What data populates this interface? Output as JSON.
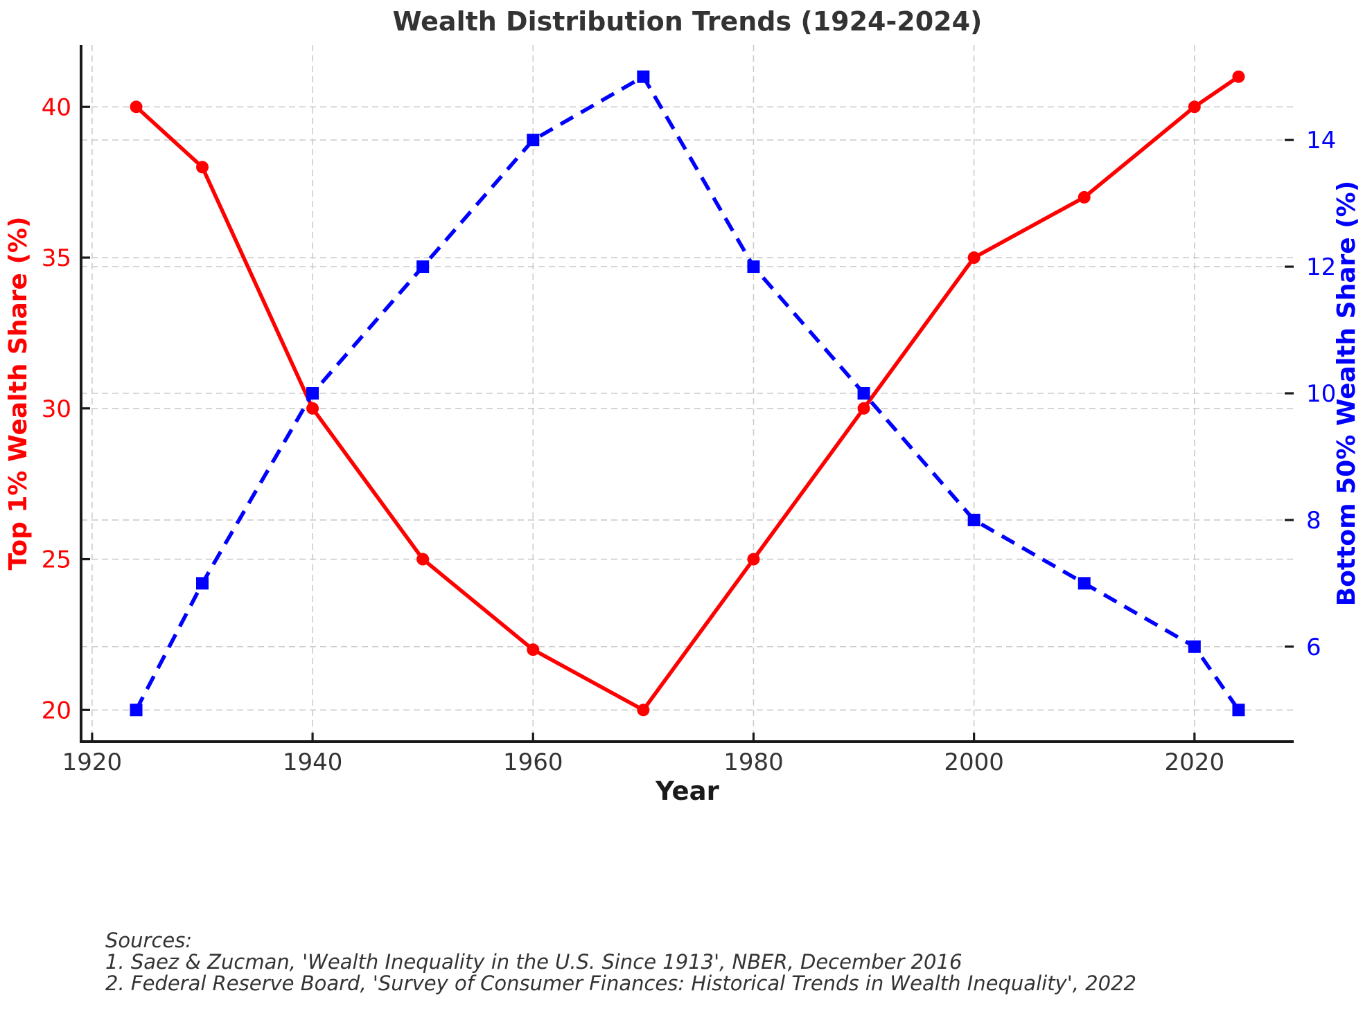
{
  "title": "Wealth Distribution Trends (1924-2024)",
  "chart_data": {
    "type": "line",
    "title": "Wealth Distribution Trends (1924-2024)",
    "xlabel": "Year",
    "grid": true,
    "x": [
      1924,
      1930,
      1940,
      1950,
      1960,
      1970,
      1980,
      1990,
      2000,
      2010,
      2020,
      2024
    ],
    "x_ticks": [
      1920,
      1940,
      1960,
      1980,
      2000,
      2020
    ],
    "x_range": [
      1919,
      2029
    ],
    "series": [
      {
        "name": "Top 1% Wealth Share (%)",
        "axis": "left",
        "color": "#ff0000",
        "line_style": "solid",
        "marker": "circle",
        "values": [
          40,
          38,
          30,
          25,
          22,
          20,
          25,
          30,
          35,
          37,
          40,
          41
        ]
      },
      {
        "name": "Bottom 50% Wealth Share (%)",
        "axis": "right",
        "color": "#0000ff",
        "line_style": "dashed",
        "marker": "square",
        "values": [
          5,
          7,
          10,
          12,
          14,
          15,
          12,
          10,
          8,
          7,
          6,
          5
        ]
      }
    ],
    "left_axis": {
      "label": "Top 1% Wealth Share (%)",
      "color": "#ff0000",
      "ticks": [
        20,
        25,
        30,
        35,
        40
      ],
      "ylim": [
        18.95,
        42.05
      ]
    },
    "right_axis": {
      "label": "Bottom 50% Wealth Share (%)",
      "color": "#0000ff",
      "ticks": [
        6,
        8,
        10,
        12,
        14
      ],
      "ylim": [
        4.5,
        15.5
      ]
    }
  },
  "sources": {
    "heading": "Sources:",
    "lines": [
      "1. Saez & Zucman, 'Wealth Inequality in the U.S. Since 1913', NBER, December 2016",
      "2. Federal Reserve Board, 'Survey of Consumer Finances: Historical Trends in Wealth Inequality', 2022"
    ]
  },
  "colors": {
    "top1_red": "#ff0000",
    "bottom50_blue": "#0000ff",
    "grid": "#cccccc",
    "text": "#333333",
    "spine": "#1a1a1a"
  }
}
